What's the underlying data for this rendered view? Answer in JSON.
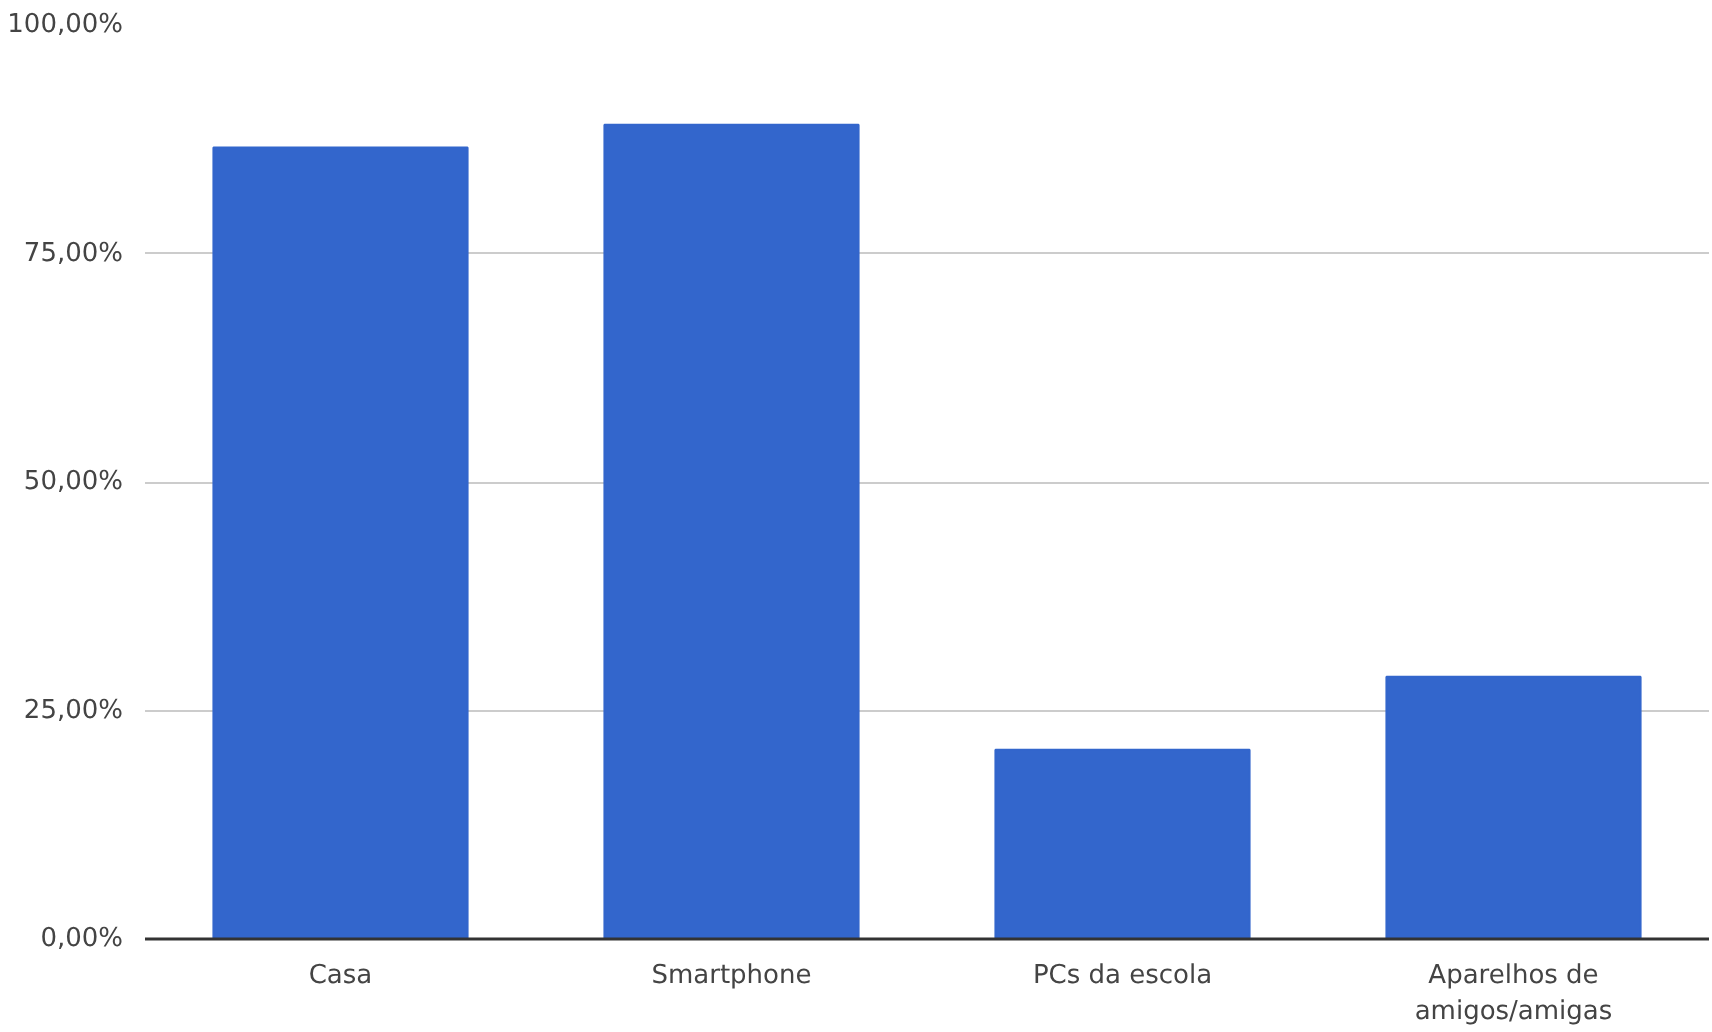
{
  "chart_data": {
    "type": "bar",
    "categories": [
      "Casa",
      "Smartphone",
      "PCs da escola",
      "Aparelhos de amigos/amigas"
    ],
    "values": [
      86.6,
      89.1,
      20.7,
      28.7
    ],
    "color": "#3366cc",
    "ylim": [
      0,
      100
    ],
    "yticks": [
      {
        "value": 0,
        "label": "0,00%"
      },
      {
        "value": 25,
        "label": "25,00%"
      },
      {
        "value": 50,
        "label": "50,00%"
      },
      {
        "value": 75,
        "label": "75,00%"
      },
      {
        "value": 100,
        "label": "100,00%"
      }
    ],
    "grid": "y"
  }
}
